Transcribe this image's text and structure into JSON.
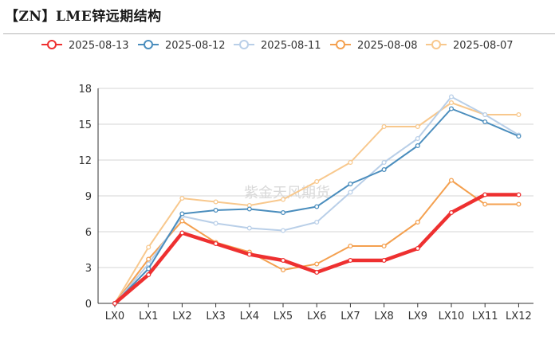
{
  "header": {
    "title": "【ZN】LME锌远期结构"
  },
  "watermark": "紫金天风期货",
  "chart_data": {
    "type": "line",
    "title": "【ZN】LME锌远期结构",
    "xlabel": "",
    "ylabel": "",
    "categories": [
      "LX0",
      "LX1",
      "LX2",
      "LX3",
      "LX4",
      "LX5",
      "LX6",
      "LX7",
      "LX8",
      "LX9",
      "LX10",
      "LX11",
      "LX12"
    ],
    "ylim": [
      0,
      18
    ],
    "yticks": [
      0,
      3,
      6,
      9,
      12,
      15,
      18
    ],
    "grid": true,
    "legend_position": "top",
    "series": [
      {
        "name": "2025-08-13",
        "color": "#ee3030",
        "width": 4.5,
        "values": [
          0,
          2.4,
          5.9,
          5.0,
          4.1,
          3.6,
          2.6,
          3.6,
          3.6,
          4.6,
          7.6,
          9.1,
          9.1
        ]
      },
      {
        "name": "2025-08-12",
        "color": "#4a8dbd",
        "width": 2,
        "values": [
          0,
          2.9,
          7.5,
          7.8,
          7.9,
          7.6,
          8.1,
          10.0,
          11.2,
          13.2,
          16.3,
          15.2,
          14.0
        ]
      },
      {
        "name": "2025-08-11",
        "color": "#b9cfe8",
        "width": 2,
        "values": [
          0,
          3.3,
          7.3,
          6.7,
          6.3,
          6.1,
          6.8,
          9.3,
          11.8,
          13.8,
          17.3,
          15.8,
          14.1
        ]
      },
      {
        "name": "2025-08-08",
        "color": "#f4a04f",
        "width": 2,
        "values": [
          0,
          3.7,
          6.9,
          5.1,
          4.3,
          2.8,
          3.3,
          4.8,
          4.8,
          6.8,
          10.3,
          8.3,
          8.3
        ]
      },
      {
        "name": "2025-08-07",
        "color": "#f8c88d",
        "width": 2,
        "values": [
          0,
          4.7,
          8.8,
          8.5,
          8.2,
          8.7,
          10.2,
          11.8,
          14.8,
          14.8,
          16.8,
          15.8,
          15.8
        ]
      }
    ]
  }
}
